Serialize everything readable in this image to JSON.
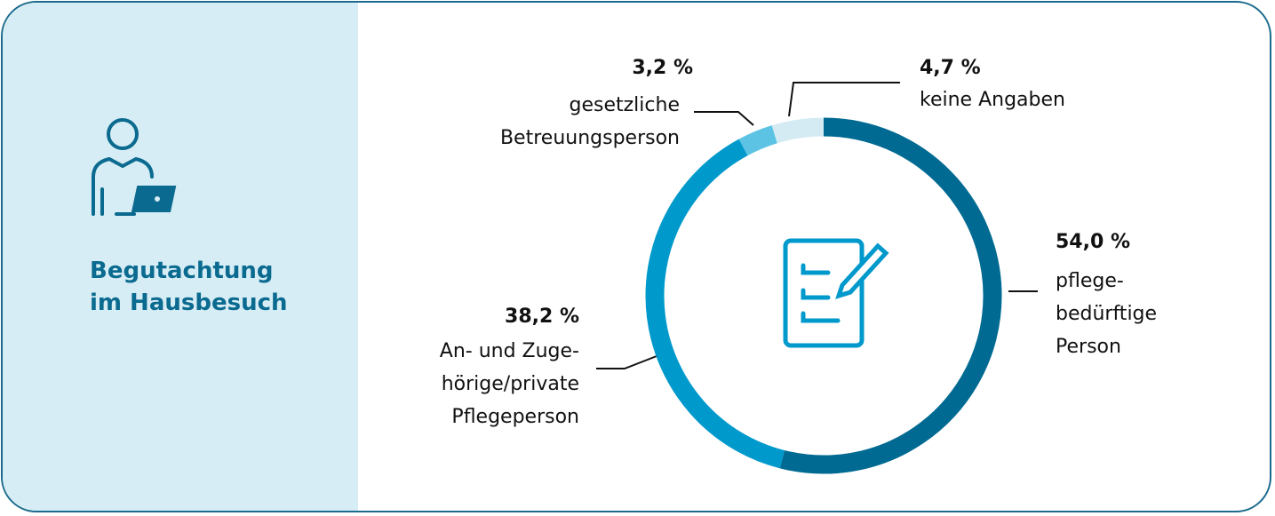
{
  "side_title": "Begutachtung\nim Hausbesuch",
  "chart_data": {
    "type": "donut",
    "categories": [
      "pflege-\nbedürftige\nPerson",
      "An- und Zuge-\nhörige/private\nPflegeperson",
      "gesetzliche\nBetreuungsperson",
      "keine Angaben"
    ],
    "values": [
      54.0,
      38.2,
      3.2,
      4.7
    ],
    "value_labels": [
      "54,0 %",
      "38,2 %",
      "3,2 %",
      "4,7 %"
    ],
    "colors": [
      "#006a92",
      "#0099cc",
      "#5cc3e4",
      "#d5ebf4"
    ]
  }
}
